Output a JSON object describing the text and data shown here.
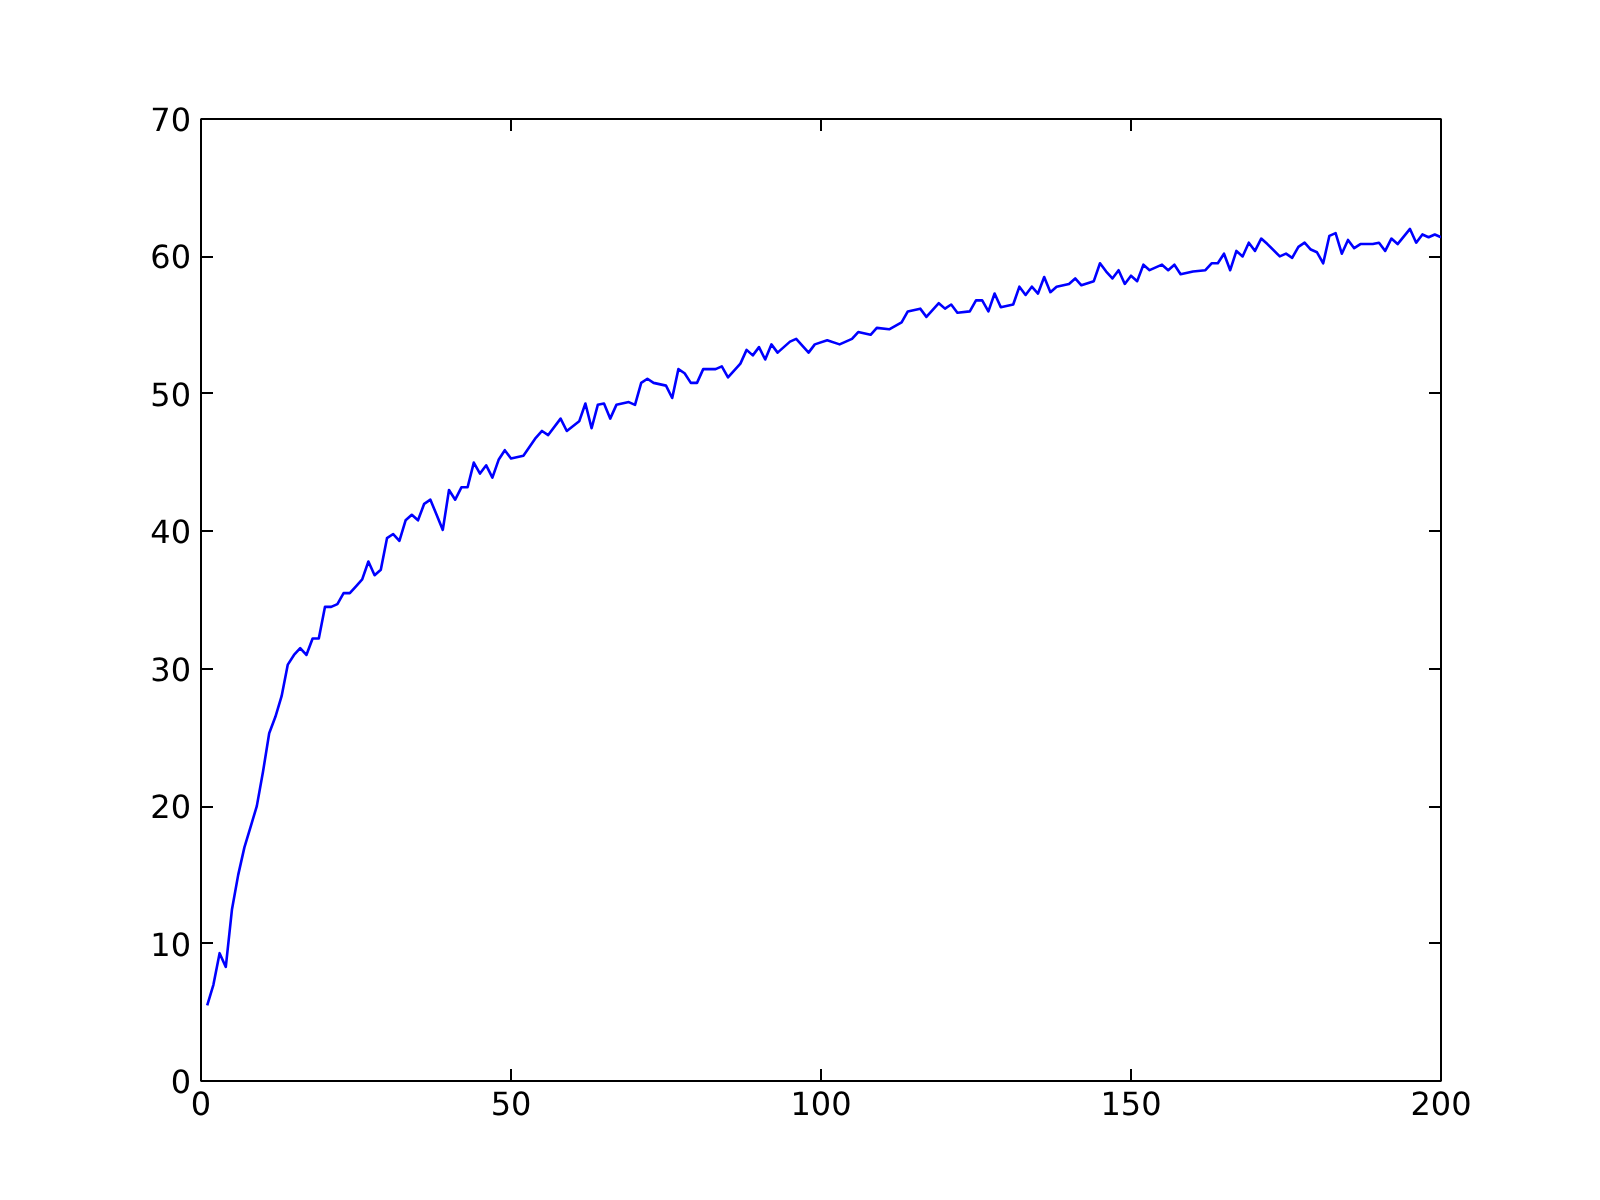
{
  "chart_data": {
    "type": "line",
    "xlim": [
      0,
      200
    ],
    "ylim": [
      0,
      70
    ],
    "xticks": [
      0,
      50,
      100,
      150,
      200
    ],
    "yticks": [
      0,
      10,
      20,
      30,
      40,
      50,
      60,
      70
    ],
    "grid": false,
    "marker": "none",
    "line_style": "solid",
    "series": [
      {
        "color": "#0000ff",
        "x": [
          1,
          2,
          3,
          4,
          5,
          6,
          7,
          8,
          9,
          10,
          11,
          12,
          13,
          14,
          15,
          16,
          17,
          18,
          19,
          20,
          21,
          22,
          23,
          24,
          25,
          26,
          27,
          28,
          29,
          30,
          31,
          32,
          33,
          34,
          35,
          36,
          37,
          38,
          39,
          40,
          41,
          42,
          43,
          44,
          45,
          46,
          47,
          48,
          49,
          50,
          52,
          54,
          55,
          56,
          58,
          59,
          61,
          62,
          63,
          64,
          65,
          66,
          67,
          69,
          70,
          71,
          72,
          73,
          75,
          76,
          77,
          78,
          79,
          80,
          81,
          83,
          84,
          85,
          87,
          88,
          89,
          90,
          91,
          92,
          93,
          95,
          96,
          98,
          99,
          101,
          103,
          105,
          106,
          108,
          109,
          111,
          113,
          114,
          116,
          117,
          119,
          120,
          121,
          122,
          124,
          125,
          126,
          127,
          128,
          129,
          131,
          132,
          133,
          134,
          135,
          136,
          137,
          138,
          140,
          141,
          142,
          144,
          145,
          146,
          147,
          148,
          149,
          150,
          151,
          152,
          153,
          155,
          156,
          157,
          158,
          160,
          162,
          163,
          164,
          165,
          166,
          167,
          168,
          169,
          170,
          171,
          172,
          174,
          175,
          176,
          177,
          178,
          179,
          180,
          181,
          182,
          183,
          184,
          185,
          186,
          187,
          189,
          190,
          191,
          192,
          193,
          195,
          196,
          197,
          198,
          199,
          200
        ],
        "values": [
          5.5,
          7,
          9.3,
          8.3,
          12.5,
          15,
          17,
          18.5,
          20,
          22.5,
          25.3,
          26.5,
          28,
          30.3,
          31,
          31.5,
          31,
          32.2,
          32.2,
          34.5,
          34.5,
          34.7,
          35.5,
          35.5,
          36,
          36.5,
          37.8,
          36.8,
          37.2,
          39.5,
          39.8,
          39.3,
          40.8,
          41.2,
          40.8,
          42,
          42.3,
          41.2,
          40.1,
          43,
          42.3,
          43.2,
          43.2,
          45,
          44.2,
          44.8,
          43.9,
          45.2,
          45.9,
          45.3,
          45.5,
          46.8,
          47.3,
          47,
          48.2,
          47.3,
          48,
          49.3,
          47.5,
          49.2,
          49.3,
          48.2,
          49.2,
          49.4,
          49.2,
          50.8,
          51.1,
          50.8,
          50.6,
          49.7,
          51.8,
          51.5,
          50.8,
          50.8,
          51.8,
          51.8,
          52,
          51.2,
          52.2,
          53.2,
          52.8,
          53.4,
          52.5,
          53.6,
          53,
          53.8,
          54,
          53,
          53.6,
          53.9,
          53.6,
          54,
          54.5,
          54.3,
          54.8,
          54.7,
          55.2,
          56,
          56.2,
          55.6,
          56.6,
          56.2,
          56.5,
          55.9,
          56,
          56.8,
          56.8,
          56,
          57.3,
          56.3,
          56.5,
          57.8,
          57.2,
          57.8,
          57.3,
          58.5,
          57.4,
          57.8,
          58,
          58.4,
          57.9,
          58.2,
          59.5,
          58.9,
          58.4,
          59,
          58,
          58.6,
          58.2,
          59.4,
          59,
          59.4,
          59,
          59.4,
          58.7,
          58.9,
          59,
          59.5,
          59.5,
          60.2,
          59,
          60.4,
          60,
          61,
          60.4,
          61.3,
          60.9,
          60,
          60.2,
          59.9,
          60.7,
          61,
          60.5,
          60.3,
          59.5,
          61.5,
          61.7,
          60.2,
          61.2,
          60.6,
          60.9,
          60.9,
          61,
          60.4,
          61.3,
          60.9,
          62,
          61,
          61.6,
          61.4,
          61.6,
          61.4
        ]
      }
    ]
  }
}
